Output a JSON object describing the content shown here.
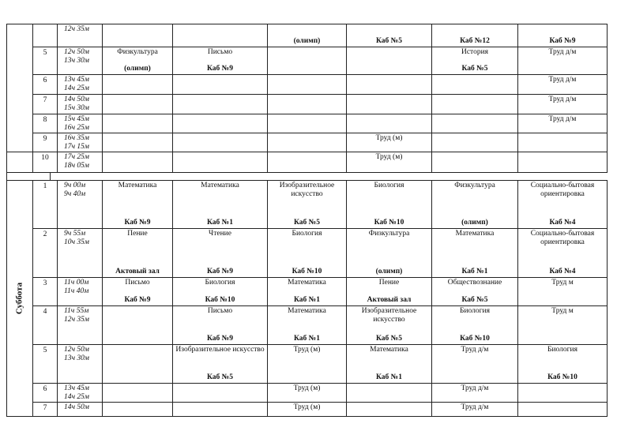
{
  "top_block": {
    "rows": [
      {
        "num": "",
        "time": [
          "12ч 35м"
        ],
        "cells": [
          {
            "subject": "",
            "room": ""
          },
          {
            "subject": "",
            "room": ""
          },
          {
            "subject": "",
            "room": "(олимп)"
          },
          {
            "subject": "",
            "room": "Каб №5"
          },
          {
            "subject": "",
            "room": "Каб №12"
          },
          {
            "subject": "",
            "room": "Каб №9"
          }
        ]
      },
      {
        "num": "5",
        "time": [
          "12ч 50м",
          "13ч 30м"
        ],
        "cells": [
          {
            "subject": "Физкультура",
            "room": "(олимп)"
          },
          {
            "subject": "Письмо",
            "room": "Каб №9"
          },
          {
            "subject": "",
            "room": ""
          },
          {
            "subject": "",
            "room": ""
          },
          {
            "subject": "История",
            "room": "Каб №5"
          },
          {
            "subject": "Труд д/м",
            "room": ""
          }
        ]
      },
      {
        "num": "6",
        "time": [
          "13ч 45м",
          "14ч 25м"
        ],
        "cells": [
          {
            "subject": "",
            "room": ""
          },
          {
            "subject": "",
            "room": ""
          },
          {
            "subject": "",
            "room": ""
          },
          {
            "subject": "",
            "room": ""
          },
          {
            "subject": "",
            "room": ""
          },
          {
            "subject": "Труд д/м",
            "room": ""
          }
        ]
      },
      {
        "num": "7",
        "time": [
          "14ч 50м",
          "15ч 30м"
        ],
        "cells": [
          {
            "subject": "",
            "room": ""
          },
          {
            "subject": "",
            "room": ""
          },
          {
            "subject": "",
            "room": ""
          },
          {
            "subject": "",
            "room": ""
          },
          {
            "subject": "",
            "room": ""
          },
          {
            "subject": "Труд д/м",
            "room": ""
          }
        ]
      },
      {
        "num": "8",
        "time": [
          "15ч 45м",
          "16ч 25м"
        ],
        "cells": [
          {
            "subject": "",
            "room": ""
          },
          {
            "subject": "",
            "room": ""
          },
          {
            "subject": "",
            "room": ""
          },
          {
            "subject": "",
            "room": ""
          },
          {
            "subject": "",
            "room": ""
          },
          {
            "subject": "Труд д/м",
            "room": ""
          }
        ]
      },
      {
        "num": "9",
        "time": [
          "16ч 35м",
          "17ч 15м"
        ],
        "cells": [
          {
            "subject": "",
            "room": ""
          },
          {
            "subject": "",
            "room": ""
          },
          {
            "subject": "",
            "room": ""
          },
          {
            "subject": "Труд   (м)",
            "room": ""
          },
          {
            "subject": "",
            "room": ""
          },
          {
            "subject": "",
            "room": ""
          }
        ]
      },
      {
        "num": "10",
        "time": [
          "17ч 25м",
          "18ч 05м"
        ],
        "cells": [
          {
            "subject": "",
            "room": ""
          },
          {
            "subject": "",
            "room": ""
          },
          {
            "subject": "",
            "room": ""
          },
          {
            "subject": "Труд   (м)",
            "room": ""
          },
          {
            "subject": "",
            "room": ""
          },
          {
            "subject": "",
            "room": ""
          }
        ]
      }
    ]
  },
  "saturday": {
    "day": "Суббота",
    "rows": [
      {
        "num": "1",
        "time": [
          "9ч 00м",
          "9ч 40м"
        ],
        "cells": [
          {
            "subject": "Математика",
            "room": "Каб №9"
          },
          {
            "subject": "Математика",
            "room": "Каб №1"
          },
          {
            "subject": "Изобразительное искусство",
            "room": "Каб №5"
          },
          {
            "subject": "Биология",
            "room": "Каб №10"
          },
          {
            "subject": "Физкультура",
            "room": "(олимп)"
          },
          {
            "subject": "Социально-бытовая ориентировка",
            "room": "Каб №4"
          }
        ]
      },
      {
        "num": "2",
        "time": [
          "9ч 55м",
          "10ч 35м"
        ],
        "cells": [
          {
            "subject": "Пение",
            "room": "Актовый зал"
          },
          {
            "subject": "Чтение",
            "room": "Каб №9"
          },
          {
            "subject": "Биология",
            "room": "Каб №10"
          },
          {
            "subject": "Физкультура",
            "room": "(олимп)"
          },
          {
            "subject": "Математика",
            "room": "Каб №1"
          },
          {
            "subject": "Социально-бытовая ориентировка",
            "room": "Каб №4"
          }
        ]
      },
      {
        "num": "3",
        "time": [
          "11ч 00м",
          "11ч 40м"
        ],
        "cells": [
          {
            "subject": "Письмо",
            "room": "Каб №9"
          },
          {
            "subject": "Биология",
            "room": "Каб №10"
          },
          {
            "subject": "Математика",
            "room": "Каб №1"
          },
          {
            "subject": "Пение",
            "room": "Актовый зал"
          },
          {
            "subject": "Обществознание",
            "room": "Каб №5"
          },
          {
            "subject": "Труд  м",
            "room": ""
          }
        ]
      },
      {
        "num": "4",
        "time": [
          "11ч 55м",
          "12ч 35м"
        ],
        "cells": [
          {
            "subject": "",
            "room": ""
          },
          {
            "subject": "Письмо",
            "room": "Каб №9"
          },
          {
            "subject": "Математика",
            "room": "Каб №1"
          },
          {
            "subject": "Изобразительное искусство",
            "room": "Каб №5"
          },
          {
            "subject": "Биология",
            "room": "Каб №10"
          },
          {
            "subject": "Труд  м",
            "room": ""
          }
        ]
      },
      {
        "num": "5",
        "time": [
          "12ч 50м",
          "13ч 30м"
        ],
        "cells": [
          {
            "subject": "",
            "room": ""
          },
          {
            "subject": "Изобразительное искусство",
            "room": "Каб №5"
          },
          {
            "subject": "Труд (м)",
            "room": ""
          },
          {
            "subject": "Математика",
            "room": "Каб №1"
          },
          {
            "subject": "Труд д/м",
            "room": ""
          },
          {
            "subject": "Биология",
            "room": "Каб №10"
          }
        ]
      },
      {
        "num": "6",
        "time": [
          "13ч 45м",
          "14ч 25м"
        ],
        "cells": [
          {
            "subject": "",
            "room": ""
          },
          {
            "subject": "",
            "room": ""
          },
          {
            "subject": "Труд (м)",
            "room": ""
          },
          {
            "subject": "",
            "room": ""
          },
          {
            "subject": "Труд д/м",
            "room": ""
          },
          {
            "subject": "",
            "room": ""
          }
        ]
      },
      {
        "num": "7",
        "time": [
          "14ч 50м"
        ],
        "cells": [
          {
            "subject": "",
            "room": ""
          },
          {
            "subject": "",
            "room": ""
          },
          {
            "subject": "Труд (м)",
            "room": ""
          },
          {
            "subject": "",
            "room": ""
          },
          {
            "subject": "Труд д/м",
            "room": ""
          },
          {
            "subject": "",
            "room": ""
          }
        ]
      }
    ]
  }
}
